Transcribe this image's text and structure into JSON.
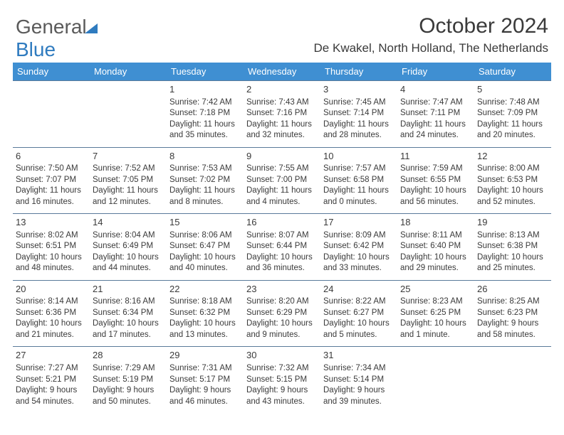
{
  "logo": {
    "text1": "General",
    "text2": "Blue"
  },
  "title": "October 2024",
  "subtitle": "De Kwakel, North Holland, The Netherlands",
  "colors": {
    "header_bg": "#3f8fd2",
    "header_fg": "#ffffff",
    "row_border": "#5a7a9a",
    "text": "#3a3a3a",
    "logo_gray": "#5a5a5a",
    "logo_blue": "#2f7bbf",
    "background": "#ffffff"
  },
  "day_headers": [
    "Sunday",
    "Monday",
    "Tuesday",
    "Wednesday",
    "Thursday",
    "Friday",
    "Saturday"
  ],
  "weeks": [
    [
      null,
      null,
      {
        "n": "1",
        "sr": "7:42 AM",
        "ss": "7:18 PM",
        "dl": "11 hours and 35 minutes."
      },
      {
        "n": "2",
        "sr": "7:43 AM",
        "ss": "7:16 PM",
        "dl": "11 hours and 32 minutes."
      },
      {
        "n": "3",
        "sr": "7:45 AM",
        "ss": "7:14 PM",
        "dl": "11 hours and 28 minutes."
      },
      {
        "n": "4",
        "sr": "7:47 AM",
        "ss": "7:11 PM",
        "dl": "11 hours and 24 minutes."
      },
      {
        "n": "5",
        "sr": "7:48 AM",
        "ss": "7:09 PM",
        "dl": "11 hours and 20 minutes."
      }
    ],
    [
      {
        "n": "6",
        "sr": "7:50 AM",
        "ss": "7:07 PM",
        "dl": "11 hours and 16 minutes."
      },
      {
        "n": "7",
        "sr": "7:52 AM",
        "ss": "7:05 PM",
        "dl": "11 hours and 12 minutes."
      },
      {
        "n": "8",
        "sr": "7:53 AM",
        "ss": "7:02 PM",
        "dl": "11 hours and 8 minutes."
      },
      {
        "n": "9",
        "sr": "7:55 AM",
        "ss": "7:00 PM",
        "dl": "11 hours and 4 minutes."
      },
      {
        "n": "10",
        "sr": "7:57 AM",
        "ss": "6:58 PM",
        "dl": "11 hours and 0 minutes."
      },
      {
        "n": "11",
        "sr": "7:59 AM",
        "ss": "6:55 PM",
        "dl": "10 hours and 56 minutes."
      },
      {
        "n": "12",
        "sr": "8:00 AM",
        "ss": "6:53 PM",
        "dl": "10 hours and 52 minutes."
      }
    ],
    [
      {
        "n": "13",
        "sr": "8:02 AM",
        "ss": "6:51 PM",
        "dl": "10 hours and 48 minutes."
      },
      {
        "n": "14",
        "sr": "8:04 AM",
        "ss": "6:49 PM",
        "dl": "10 hours and 44 minutes."
      },
      {
        "n": "15",
        "sr": "8:06 AM",
        "ss": "6:47 PM",
        "dl": "10 hours and 40 minutes."
      },
      {
        "n": "16",
        "sr": "8:07 AM",
        "ss": "6:44 PM",
        "dl": "10 hours and 36 minutes."
      },
      {
        "n": "17",
        "sr": "8:09 AM",
        "ss": "6:42 PM",
        "dl": "10 hours and 33 minutes."
      },
      {
        "n": "18",
        "sr": "8:11 AM",
        "ss": "6:40 PM",
        "dl": "10 hours and 29 minutes."
      },
      {
        "n": "19",
        "sr": "8:13 AM",
        "ss": "6:38 PM",
        "dl": "10 hours and 25 minutes."
      }
    ],
    [
      {
        "n": "20",
        "sr": "8:14 AM",
        "ss": "6:36 PM",
        "dl": "10 hours and 21 minutes."
      },
      {
        "n": "21",
        "sr": "8:16 AM",
        "ss": "6:34 PM",
        "dl": "10 hours and 17 minutes."
      },
      {
        "n": "22",
        "sr": "8:18 AM",
        "ss": "6:32 PM",
        "dl": "10 hours and 13 minutes."
      },
      {
        "n": "23",
        "sr": "8:20 AM",
        "ss": "6:29 PM",
        "dl": "10 hours and 9 minutes."
      },
      {
        "n": "24",
        "sr": "8:22 AM",
        "ss": "6:27 PM",
        "dl": "10 hours and 5 minutes."
      },
      {
        "n": "25",
        "sr": "8:23 AM",
        "ss": "6:25 PM",
        "dl": "10 hours and 1 minute."
      },
      {
        "n": "26",
        "sr": "8:25 AM",
        "ss": "6:23 PM",
        "dl": "9 hours and 58 minutes."
      }
    ],
    [
      {
        "n": "27",
        "sr": "7:27 AM",
        "ss": "5:21 PM",
        "dl": "9 hours and 54 minutes."
      },
      {
        "n": "28",
        "sr": "7:29 AM",
        "ss": "5:19 PM",
        "dl": "9 hours and 50 minutes."
      },
      {
        "n": "29",
        "sr": "7:31 AM",
        "ss": "5:17 PM",
        "dl": "9 hours and 46 minutes."
      },
      {
        "n": "30",
        "sr": "7:32 AM",
        "ss": "5:15 PM",
        "dl": "9 hours and 43 minutes."
      },
      {
        "n": "31",
        "sr": "7:34 AM",
        "ss": "5:14 PM",
        "dl": "9 hours and 39 minutes."
      },
      null,
      null
    ]
  ],
  "labels": {
    "sunrise": "Sunrise:",
    "sunset": "Sunset:",
    "daylight": "Daylight:"
  }
}
